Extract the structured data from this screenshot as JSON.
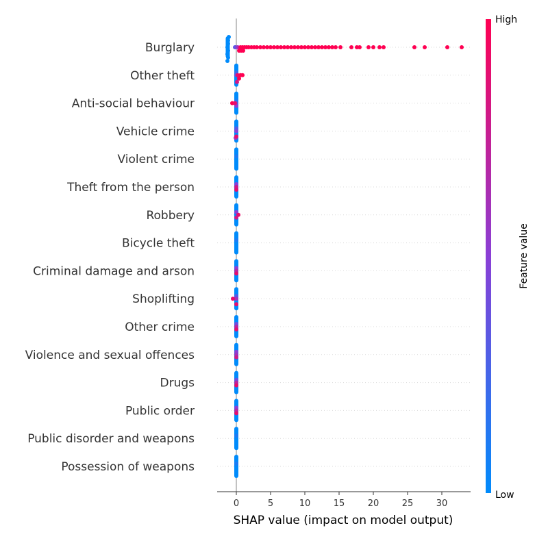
{
  "chart_data": {
    "type": "scatter",
    "subtype": "shap-beeswarm",
    "title": "",
    "xlabel": "SHAP value (impact on model output)",
    "ylabel": "",
    "xlim": [
      -2.8,
      34.2
    ],
    "xticks": [
      0,
      5,
      10,
      15,
      20,
      25,
      30
    ],
    "grid": "dotted horizontal row guides",
    "colorbar": {
      "label": "Feature value",
      "high_label": "High",
      "low_label": "Low",
      "low_color": "#008bfb",
      "mid_color": "#8a3fd6",
      "high_color": "#ff0052"
    },
    "zero_line_color": "#999999",
    "features": [
      {
        "name": "Burglary",
        "points": [
          [
            -1.3,
            0
          ],
          [
            -1.2,
            0
          ],
          [
            -1.2,
            0
          ],
          [
            -1.3,
            0
          ],
          [
            -1.2,
            0
          ],
          [
            -1.2,
            0
          ],
          [
            -1.1,
            0
          ],
          [
            -1.3,
            0
          ],
          [
            -0.1,
            0.3
          ],
          [
            -0.2,
            0.35
          ],
          [
            0.2,
            0.6
          ],
          [
            0.4,
            1
          ],
          [
            0.6,
            1
          ],
          [
            0.7,
            1
          ],
          [
            0.9,
            1
          ],
          [
            1.0,
            1
          ],
          [
            1.2,
            1
          ],
          [
            1.5,
            1
          ],
          [
            1.8,
            1
          ],
          [
            2.2,
            1
          ],
          [
            2.6,
            1
          ],
          [
            3.0,
            1
          ],
          [
            3.5,
            1
          ],
          [
            4.0,
            1
          ],
          [
            4.5,
            1
          ],
          [
            5.0,
            1
          ],
          [
            5.5,
            1
          ],
          [
            6.0,
            1
          ],
          [
            6.5,
            1
          ],
          [
            7.0,
            1
          ],
          [
            7.5,
            1
          ],
          [
            8.0,
            1
          ],
          [
            8.5,
            1
          ],
          [
            9.0,
            1
          ],
          [
            9.5,
            1
          ],
          [
            10.0,
            1
          ],
          [
            10.5,
            1
          ],
          [
            11.0,
            1
          ],
          [
            11.5,
            1
          ],
          [
            12.0,
            1
          ],
          [
            12.5,
            1
          ],
          [
            13.0,
            1
          ],
          [
            13.5,
            1
          ],
          [
            14.0,
            1
          ],
          [
            14.5,
            1
          ],
          [
            15.2,
            1
          ],
          [
            16.8,
            1
          ],
          [
            17.6,
            1
          ],
          [
            18.0,
            1
          ],
          [
            19.3,
            1
          ],
          [
            20.0,
            1
          ],
          [
            20.9,
            1
          ],
          [
            21.5,
            1
          ],
          [
            26.0,
            1
          ],
          [
            27.5,
            1
          ],
          [
            30.8,
            1
          ],
          [
            32.9,
            1
          ]
        ]
      },
      {
        "name": "Other theft",
        "points": [
          [
            0,
            0
          ],
          [
            0,
            0.2
          ],
          [
            0,
            0.4
          ],
          [
            0.1,
            0.8
          ],
          [
            0.2,
            0.9
          ],
          [
            0.4,
            1
          ],
          [
            0.6,
            1
          ],
          [
            0.9,
            1
          ]
        ]
      },
      {
        "name": "Anti-social behaviour",
        "points": [
          [
            0,
            0
          ],
          [
            0,
            0.1
          ],
          [
            0,
            0.3
          ],
          [
            0,
            0.5
          ],
          [
            -0.6,
            1
          ],
          [
            -0.2,
            0.9
          ]
        ]
      },
      {
        "name": "Vehicle crime",
        "points": [
          [
            0,
            0
          ],
          [
            0,
            0.3
          ],
          [
            0,
            0.5
          ],
          [
            -0.1,
            0.6
          ],
          [
            0,
            0.9
          ]
        ]
      },
      {
        "name": "Violent crime",
        "points": [
          [
            0,
            0
          ],
          [
            0,
            0.1
          ]
        ]
      },
      {
        "name": "Theft from the person",
        "points": [
          [
            0,
            0
          ],
          [
            0,
            0.5
          ],
          [
            0,
            0.8
          ],
          [
            0,
            0.9
          ]
        ]
      },
      {
        "name": "Robbery",
        "points": [
          [
            0,
            0
          ],
          [
            0,
            0.5
          ],
          [
            0.3,
            0.9
          ],
          [
            0,
            0.8
          ]
        ]
      },
      {
        "name": "Bicycle theft",
        "points": [
          [
            0,
            0
          ],
          [
            0,
            0.1
          ]
        ]
      },
      {
        "name": "Criminal damage and arson",
        "points": [
          [
            0,
            0
          ],
          [
            0,
            0.5
          ],
          [
            0,
            0.7
          ],
          [
            0,
            0.9
          ]
        ]
      },
      {
        "name": "Shoplifting",
        "points": [
          [
            0,
            0
          ],
          [
            0,
            0.3
          ],
          [
            0,
            0.6
          ],
          [
            -0.5,
            0.9
          ],
          [
            0,
            0.9
          ]
        ]
      },
      {
        "name": "Other crime",
        "points": [
          [
            0,
            0
          ],
          [
            0,
            0.4
          ],
          [
            0,
            0.7
          ],
          [
            0,
            0.9
          ]
        ]
      },
      {
        "name": "Violence and sexual offences",
        "points": [
          [
            0,
            0
          ],
          [
            0,
            0.5
          ],
          [
            0,
            0.6
          ],
          [
            0,
            0.8
          ]
        ]
      },
      {
        "name": "Drugs",
        "points": [
          [
            0,
            0
          ],
          [
            0,
            0.4
          ],
          [
            0,
            0.7
          ],
          [
            0,
            0.9
          ]
        ]
      },
      {
        "name": "Public order",
        "points": [
          [
            0,
            0
          ],
          [
            0,
            0.5
          ],
          [
            0,
            0.7
          ],
          [
            0,
            0.9
          ]
        ]
      },
      {
        "name": "Public disorder and weapons",
        "points": [
          [
            0,
            0
          ],
          [
            0,
            0.1
          ]
        ]
      },
      {
        "name": "Possession of weapons",
        "points": [
          [
            0,
            0
          ],
          [
            0,
            0.1
          ]
        ]
      }
    ]
  }
}
